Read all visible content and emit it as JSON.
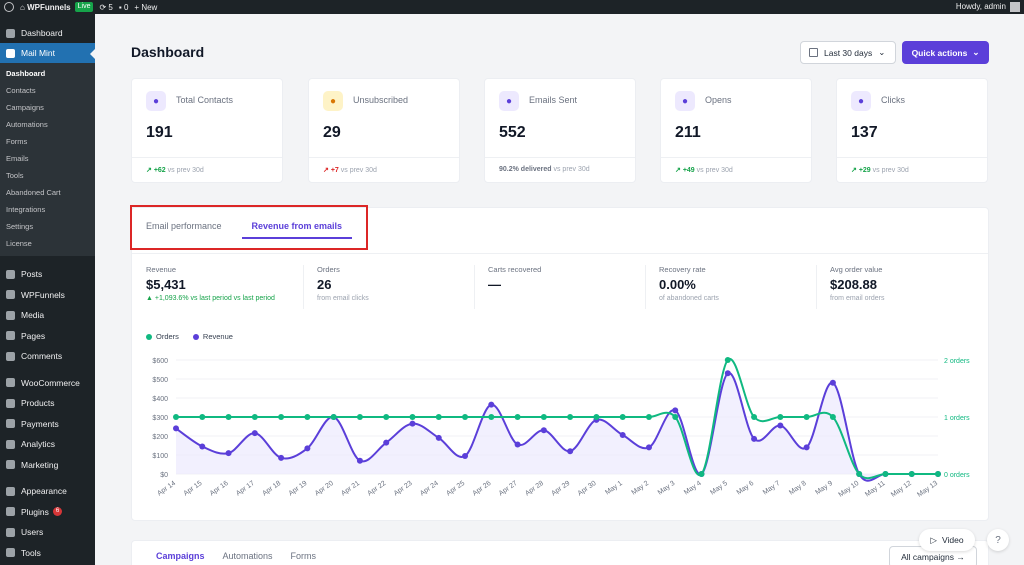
{
  "adminbar": {
    "site": "WPFunnels",
    "live": "Live",
    "updates": "5",
    "comments": "0",
    "new": "New",
    "howdy": "Howdy, admin"
  },
  "sidebar": {
    "top": [
      {
        "label": "Dashboard"
      },
      {
        "label": "Mail Mint"
      }
    ],
    "submenu": [
      "Dashboard",
      "Contacts",
      "Campaigns",
      "Automations",
      "Forms",
      "Emails",
      "Tools",
      "Abandoned Cart",
      "Integrations",
      "Settings",
      "License"
    ],
    "rest": [
      {
        "label": "Posts"
      },
      {
        "label": "WPFunnels"
      },
      {
        "label": "Media"
      },
      {
        "label": "Pages"
      },
      {
        "label": "Comments"
      },
      {
        "label": "WooCommerce"
      },
      {
        "label": "Products"
      },
      {
        "label": "Payments"
      },
      {
        "label": "Analytics"
      },
      {
        "label": "Marketing"
      },
      {
        "label": "Appearance"
      },
      {
        "label": "Plugins",
        "badge": "6"
      },
      {
        "label": "Users"
      },
      {
        "label": "Tools"
      }
    ]
  },
  "header": {
    "title": "Dashboard",
    "range": "Last 30 days",
    "quick": "Quick actions"
  },
  "cards": [
    {
      "label": "Total Contacts",
      "value": "191",
      "delta": "+62",
      "trend": "up",
      "note": "vs prev 30d",
      "icon": "contact-icon",
      "bg": "#ede9fe",
      "fg": "#5b3fd9"
    },
    {
      "label": "Unsubscribed",
      "value": "29",
      "delta": "+7",
      "trend": "down",
      "note": "vs prev 30d",
      "icon": "unsubscribe-icon",
      "bg": "#fef3c7",
      "fg": "#d97706"
    },
    {
      "label": "Emails Sent",
      "value": "552",
      "delta": "90.2% delivered",
      "trend": "none",
      "note": "vs prev 30d",
      "icon": "email-icon",
      "bg": "#ede9fe",
      "fg": "#5b3fd9"
    },
    {
      "label": "Opens",
      "value": "211",
      "delta": "+49",
      "trend": "up",
      "note": "vs prev 30d",
      "icon": "open-icon",
      "bg": "#ede9fe",
      "fg": "#5b3fd9"
    },
    {
      "label": "Clicks",
      "value": "137",
      "delta": "+29",
      "trend": "up",
      "note": "vs prev 30d",
      "icon": "click-icon",
      "bg": "#ede9fe",
      "fg": "#5b3fd9"
    }
  ],
  "tabs": [
    "Email performance",
    "Revenue from emails"
  ],
  "stats": [
    {
      "label": "Revenue",
      "value": "$5,431",
      "sub": "▲ +1,093.6% vs last period vs last period"
    },
    {
      "label": "Orders",
      "value": "26",
      "sub": "from email clicks"
    },
    {
      "label": "Carts recovered",
      "value": "—",
      "sub": ""
    },
    {
      "label": "Recovery rate",
      "value": "0.00%",
      "sub": "of abandoned carts"
    },
    {
      "label": "Avg order value",
      "value": "$208.88",
      "sub": "from email orders"
    }
  ],
  "colors": {
    "orders": "#10b981",
    "revenue": "#5b3fd9"
  },
  "chart_data": {
    "type": "line",
    "categories": [
      "Apr 14",
      "Apr 15",
      "Apr 16",
      "Apr 17",
      "Apr 18",
      "Apr 19",
      "Apr 20",
      "Apr 21",
      "Apr 22",
      "Apr 23",
      "Apr 24",
      "Apr 25",
      "Apr 26",
      "Apr 27",
      "Apr 28",
      "Apr 29",
      "Apr 30",
      "May 1",
      "May 2",
      "May 3",
      "May 4",
      "May 5",
      "May 6",
      "May 7",
      "May 8",
      "May 9",
      "May 10",
      "May 11",
      "May 12",
      "May 13"
    ],
    "series": [
      {
        "name": "Orders",
        "axis": "right",
        "values": [
          1,
          1,
          1,
          1,
          1,
          1,
          1,
          1,
          1,
          1,
          1,
          1,
          1,
          1,
          1,
          1,
          1,
          1,
          1,
          1,
          0,
          2,
          1,
          1,
          1,
          1,
          0,
          0,
          0,
          0
        ]
      },
      {
        "name": "Revenue",
        "axis": "left",
        "values": [
          240,
          145,
          110,
          215,
          85,
          135,
          300,
          70,
          165,
          265,
          190,
          95,
          365,
          155,
          230,
          120,
          285,
          205,
          140,
          335,
          0,
          530,
          185,
          255,
          140,
          480,
          0,
          0,
          0,
          0
        ]
      }
    ],
    "yleft": {
      "ticks": [
        "$0",
        "$100",
        "$200",
        "$300",
        "$400",
        "$500",
        "$600"
      ],
      "range": [
        0,
        600
      ]
    },
    "yright": {
      "ticks": [
        "0 orders",
        "1 orders",
        "2 orders"
      ],
      "range": [
        0,
        2
      ]
    },
    "legend": "top-left"
  },
  "bottom": {
    "tabs": [
      "Campaigns",
      "Automations",
      "Forms"
    ],
    "all": "All campaigns"
  },
  "widgets": {
    "video": "Video",
    "help": "?"
  }
}
